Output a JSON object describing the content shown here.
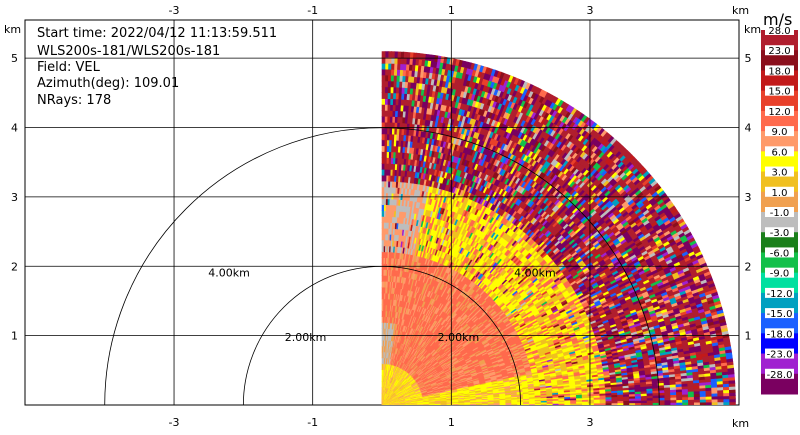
{
  "info": {
    "start_time": "Start time: 2022/04/12 11:13:59.511",
    "instrument": "WLS200s-181/WLS200s-181",
    "field": "Field: VEL",
    "azimuth": "Azimuth(deg): 109.01",
    "nrays": "NRays: 178"
  },
  "chart_data": {
    "type": "heatmap",
    "title": "",
    "x_unit": "km",
    "y_unit": "km",
    "xlim": [
      -5.15,
      5.15
    ],
    "ylim": [
      0,
      5.55
    ],
    "x_ticks": [
      -3,
      -1,
      1,
      3
    ],
    "y_ticks": [
      1,
      2,
      3,
      4,
      5
    ],
    "grid": true,
    "range_rings": [
      {
        "radius_km": 2.0,
        "label": "2.00km"
      },
      {
        "radius_km": 4.0,
        "label": "4.00km"
      }
    ],
    "sector": {
      "azimuth_start_deg": 0,
      "azimuth_end_deg": 90,
      "max_range_km": 5.1
    },
    "colorbar": {
      "unit": "m/s",
      "ticks": [
        "28.0",
        "23.0",
        "18.0",
        "15.0",
        "12.0",
        "9.0",
        "6.0",
        "3.0",
        "1.0",
        "-1.0",
        "-3.0",
        "-6.0",
        "-9.0",
        "-12.0",
        "-15.0",
        "-18.0",
        "-23.0",
        "-28.0"
      ],
      "colors": [
        "#b01e2e",
        "#8a0f1c",
        "#c21a1a",
        "#e8402a",
        "#ff6a4d",
        "#ff9a6a",
        "#ffff00",
        "#f0c020",
        "#f0a050",
        "#bdbdbd",
        "#1a7f1a",
        "#13c04a",
        "#00e0a0",
        "#00a0c0",
        "#1a60ff",
        "#0000ff",
        "#a020d0",
        "#7a0060"
      ]
    },
    "velocity_bands": [
      {
        "range_km": [
          0,
          0.6
        ],
        "value": "9.0 to 15.0"
      },
      {
        "range_km": [
          0.6,
          2.2
        ],
        "value": "6.0 to 15.0"
      },
      {
        "range_km": [
          2.2,
          3.2
        ],
        "value": "mixed 3.0 to 12.0"
      },
      {
        "range_km": [
          3.2,
          5.1
        ],
        "value": "noisy, -28.0 to 28.0"
      }
    ]
  }
}
